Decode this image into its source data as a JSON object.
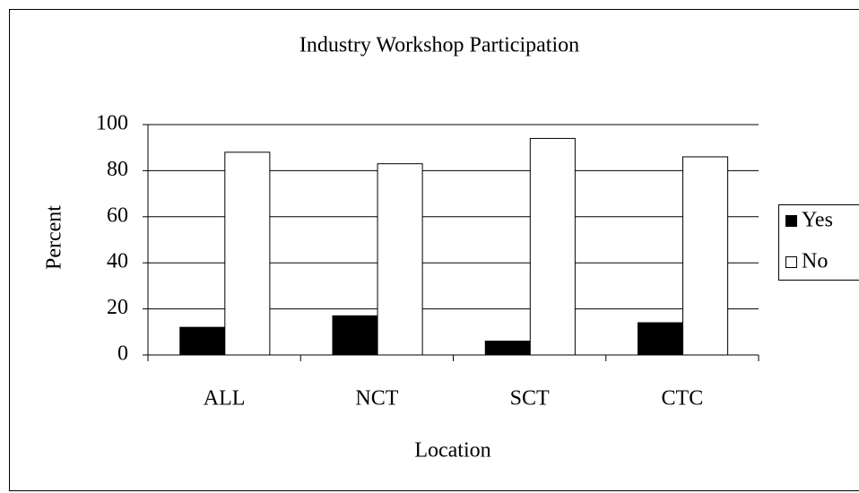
{
  "chart_data": {
    "type": "bar",
    "title": "Industry Workshop Participation",
    "x_label": "Location",
    "y_label": "Percent",
    "categories": [
      "ALL",
      "NCT",
      "SCT",
      "CTC"
    ],
    "series": [
      {
        "name": "Yes",
        "color": "#000000",
        "values": [
          12,
          17,
          6,
          14
        ]
      },
      {
        "name": "No",
        "color": "#ffffff",
        "values": [
          88,
          83,
          94,
          86
        ]
      }
    ],
    "ylim": [
      0,
      100
    ],
    "yticks": [
      0,
      20,
      40,
      60,
      80,
      100
    ],
    "grid": true,
    "legend": "right"
  }
}
